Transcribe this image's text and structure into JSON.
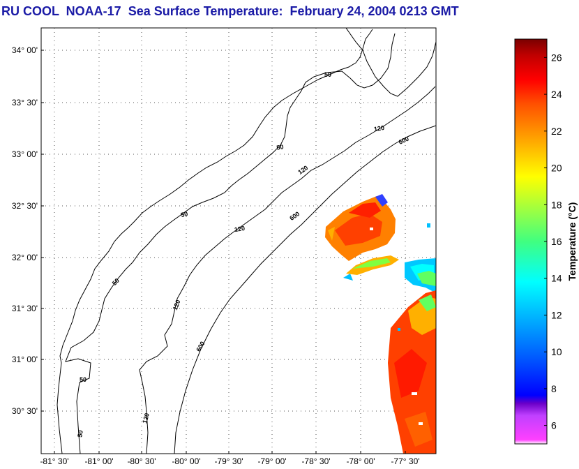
{
  "title": "RU COOL  NOAA-17  Sea Surface Temperature:  February 24, 2004 0213 GMT",
  "map": {
    "lat_ticks": [
      "34° 00'",
      "33° 30'",
      "33° 00'",
      "32° 30'",
      "32° 00'",
      "31° 30'",
      "31° 00'",
      "30° 30'"
    ],
    "lon_ticks": [
      "-81° 30'",
      "-81° 00'",
      "-80° 30'",
      "-80° 00'",
      "-79° 30'",
      "-79° 00'",
      "-78° 30'",
      "-78° 00'",
      "-77° 30'"
    ],
    "contour_labels": [
      "50",
      "50",
      "50",
      "50",
      "50",
      "50",
      "120",
      "120",
      "120",
      "120",
      "120",
      "600",
      "600",
      "600"
    ],
    "grid": true
  },
  "colorbar": {
    "label": "Temperature (°C)",
    "ticks": [
      "26",
      "24",
      "22",
      "20",
      "18",
      "16",
      "14",
      "12",
      "10",
      "8",
      "6"
    ],
    "range": [
      5,
      27
    ]
  },
  "colors": {
    "title": "#1a1aa6",
    "grid": "#555555",
    "coast": "#000000"
  }
}
